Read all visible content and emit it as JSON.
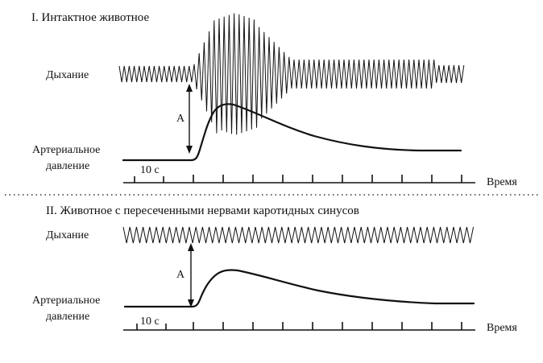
{
  "panel_1": {
    "title": "I. Интактное животное",
    "respiration_label": "Дыхание",
    "pressure_label_line1": "Артериальное",
    "pressure_label_line2": "давление",
    "amplitude_label": "А",
    "time_scale_label": "10 с",
    "time_axis_label": "Время"
  },
  "panel_2": {
    "title": "II. Животное с пересеченными нервами каротидных синусов",
    "respiration_label": "Дыхание",
    "pressure_label_line1": "Артериальное",
    "pressure_label_line2": "давление",
    "amplitude_label": "А",
    "time_scale_label": "10 с",
    "time_axis_label": "Время"
  },
  "colors": {
    "ink": "#111111",
    "background": "#ffffff"
  }
}
